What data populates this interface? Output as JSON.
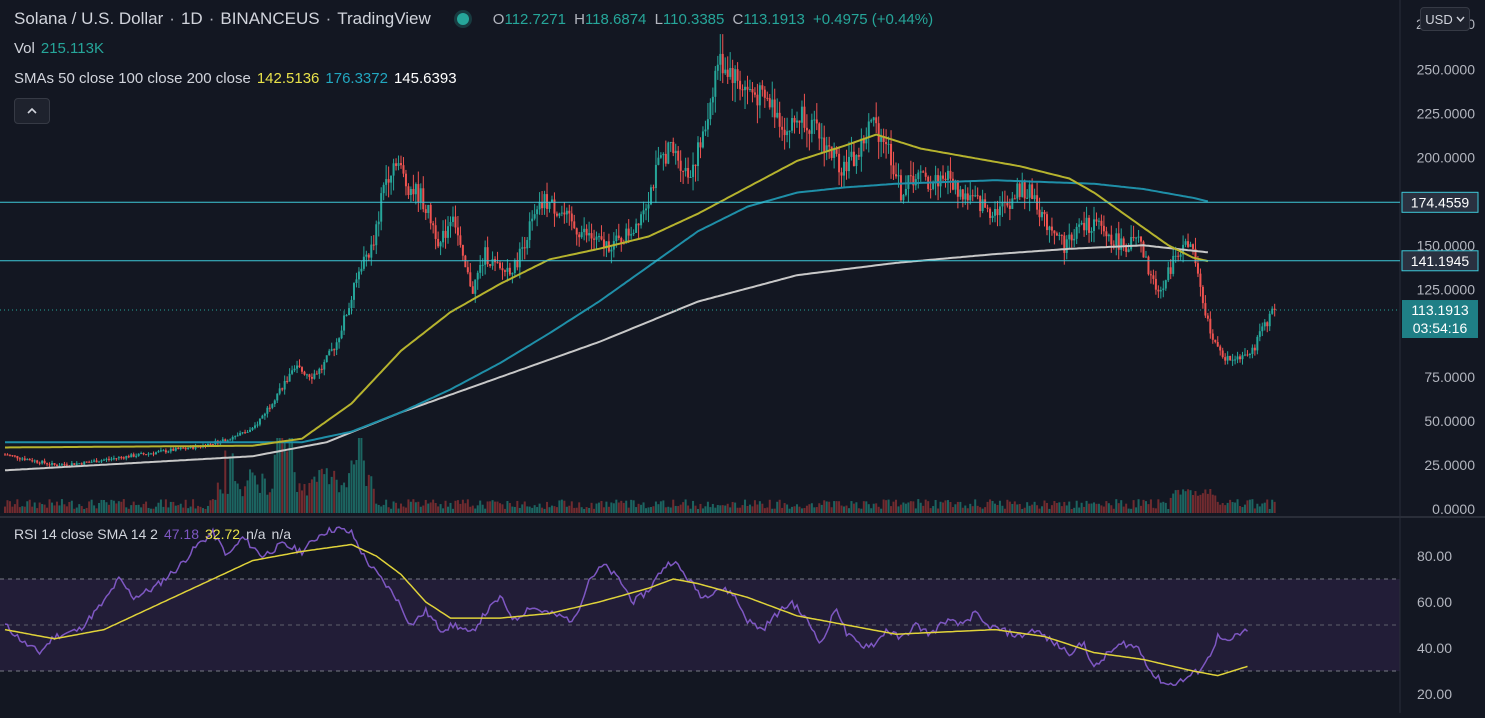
{
  "header": {
    "symbol": "Solana / U.S. Dollar",
    "interval": "1D",
    "exchange": "BINANCEUS",
    "brand": "TradingView",
    "sep": "·",
    "ohlc": {
      "o_label": "O",
      "o": "112.7271",
      "h_label": "H",
      "h": "118.6874",
      "l_label": "L",
      "l": "110.3385",
      "c_label": "C",
      "c": "113.1913",
      "change": "+0.4975 (+0.44%)"
    },
    "vol_label": "Vol",
    "vol_value": "215.113K",
    "smas_label": "SMAs 50 close 100 close 200 close",
    "sma50": "142.5136",
    "sma100": "176.3372",
    "sma200": "145.6393",
    "currency": "USD"
  },
  "rsi_legend": {
    "label": "RSI 14 close SMA 14 2",
    "rsi": "47.18",
    "sma": "32.72",
    "na1": "n/a",
    "na2": "n/a"
  },
  "price_axis": {
    "ticks": [
      "250.0000",
      "225.0000",
      "200.0000",
      "150.0000",
      "125.0000",
      "75.0000",
      "50.0000",
      "25.0000",
      "0.0000"
    ],
    "tick_values": [
      250,
      225,
      200,
      150,
      125,
      75,
      50,
      25,
      0
    ],
    "top_partial": "2",
    "top_right": "0"
  },
  "horizontal_lines": [
    {
      "value": 174.4559,
      "label": "174.4559"
    },
    {
      "value": 141.1945,
      "label": "141.1945"
    }
  ],
  "last_price": {
    "value": 113.1913,
    "label": "113.1913",
    "countdown": "03:54:16"
  },
  "rsi_axis": {
    "ticks": [
      "80.00",
      "60.00",
      "40.00",
      "20.00"
    ],
    "tick_values": [
      80,
      60,
      40,
      20
    ],
    "band": [
      30,
      70
    ],
    "mid": 50
  },
  "colors": {
    "background": "#131722",
    "up": "#26a69a",
    "down": "#ef5350",
    "sma50": "#b6b32e",
    "sma100": "#1f8fa8",
    "sma200": "#c8c8c8",
    "hline": "#3ec8d8",
    "rsi": "#7e57c2",
    "rsi_sma": "#e0d33a",
    "label_bg": "#1f7f86"
  },
  "chart_data": {
    "type": "candlestick",
    "series_names": [
      "Price",
      "SMA 50",
      "SMA 100",
      "SMA 200",
      "Vol",
      "RSI 14",
      "RSI SMA 14"
    ],
    "anchors": [
      [
        0,
        31
      ],
      [
        10,
        28
      ],
      [
        20,
        25
      ],
      [
        30,
        26
      ],
      [
        40,
        28
      ],
      [
        50,
        30
      ],
      [
        60,
        32
      ],
      [
        70,
        34
      ],
      [
        80,
        36
      ],
      [
        90,
        40
      ],
      [
        100,
        45
      ],
      [
        105,
        55
      ],
      [
        112,
        70
      ],
      [
        118,
        80
      ],
      [
        124,
        76
      ],
      [
        128,
        80
      ],
      [
        134,
        95
      ],
      [
        140,
        120
      ],
      [
        144,
        140
      ],
      [
        149,
        150
      ],
      [
        153,
        185
      ],
      [
        158,
        200
      ],
      [
        162,
        185
      ],
      [
        168,
        178
      ],
      [
        172,
        165
      ],
      [
        176,
        150
      ],
      [
        181,
        170
      ],
      [
        185,
        140
      ],
      [
        189,
        125
      ],
      [
        194,
        145
      ],
      [
        200,
        135
      ],
      [
        206,
        138
      ],
      [
        212,
        160
      ],
      [
        218,
        175
      ],
      [
        224,
        170
      ],
      [
        230,
        160
      ],
      [
        236,
        155
      ],
      [
        242,
        150
      ],
      [
        248,
        152
      ],
      [
        254,
        160
      ],
      [
        260,
        178
      ],
      [
        264,
        195
      ],
      [
        268,
        205
      ],
      [
        272,
        200
      ],
      [
        276,
        190
      ],
      [
        282,
        210
      ],
      [
        288,
        255
      ],
      [
        293,
        250
      ],
      [
        298,
        240
      ],
      [
        304,
        235
      ],
      [
        310,
        230
      ],
      [
        316,
        215
      ],
      [
        322,
        225
      ],
      [
        330,
        210
      ],
      [
        338,
        195
      ],
      [
        344,
        200
      ],
      [
        350,
        220
      ],
      [
        356,
        210
      ],
      [
        362,
        180
      ],
      [
        368,
        190
      ],
      [
        374,
        185
      ],
      [
        380,
        190
      ],
      [
        386,
        180
      ],
      [
        392,
        175
      ],
      [
        398,
        170
      ],
      [
        404,
        172
      ],
      [
        410,
        182
      ],
      [
        416,
        178
      ],
      [
        420,
        163
      ],
      [
        424,
        160
      ],
      [
        428,
        150
      ],
      [
        434,
        160
      ],
      [
        440,
        162
      ],
      [
        446,
        155
      ],
      [
        452,
        150
      ],
      [
        458,
        152
      ],
      [
        464,
        128
      ],
      [
        468,
        125
      ],
      [
        472,
        142
      ],
      [
        476,
        150
      ],
      [
        480,
        148
      ],
      [
        484,
        115
      ],
      [
        490,
        90
      ],
      [
        494,
        85
      ],
      [
        500,
        88
      ],
      [
        505,
        92
      ],
      [
        509,
        105
      ],
      [
        513,
        113
      ]
    ],
    "sma50_anchors": [
      [
        0,
        35
      ],
      [
        100,
        36
      ],
      [
        120,
        40
      ],
      [
        140,
        60
      ],
      [
        160,
        90
      ],
      [
        180,
        112
      ],
      [
        200,
        128
      ],
      [
        220,
        142
      ],
      [
        240,
        148
      ],
      [
        260,
        155
      ],
      [
        280,
        168
      ],
      [
        300,
        183
      ],
      [
        320,
        198
      ],
      [
        340,
        207
      ],
      [
        352,
        213
      ],
      [
        370,
        205
      ],
      [
        390,
        200
      ],
      [
        410,
        195
      ],
      [
        430,
        188
      ],
      [
        440,
        180
      ],
      [
        455,
        165
      ],
      [
        470,
        150
      ],
      [
        480,
        143
      ],
      [
        486,
        141
      ]
    ],
    "sma100_anchors": [
      [
        0,
        38
      ],
      [
        120,
        38
      ],
      [
        140,
        44
      ],
      [
        160,
        55
      ],
      [
        180,
        68
      ],
      [
        200,
        83
      ],
      [
        220,
        100
      ],
      [
        240,
        118
      ],
      [
        260,
        138
      ],
      [
        280,
        158
      ],
      [
        300,
        172
      ],
      [
        320,
        180
      ],
      [
        340,
        183
      ],
      [
        360,
        185
      ],
      [
        380,
        186
      ],
      [
        400,
        187
      ],
      [
        420,
        186
      ],
      [
        440,
        185
      ],
      [
        460,
        182
      ],
      [
        480,
        177
      ],
      [
        486,
        175
      ]
    ],
    "sma200_anchors": [
      [
        0,
        22
      ],
      [
        100,
        30
      ],
      [
        130,
        38
      ],
      [
        160,
        55
      ],
      [
        200,
        75
      ],
      [
        240,
        95
      ],
      [
        280,
        118
      ],
      [
        320,
        133
      ],
      [
        360,
        140
      ],
      [
        400,
        145
      ],
      [
        430,
        148
      ],
      [
        460,
        150
      ],
      [
        486,
        146
      ]
    ],
    "rsi_anchors": [
      [
        0,
        50
      ],
      [
        8,
        42
      ],
      [
        14,
        38
      ],
      [
        20,
        45
      ],
      [
        30,
        48
      ],
      [
        40,
        60
      ],
      [
        46,
        70
      ],
      [
        52,
        62
      ],
      [
        60,
        66
      ],
      [
        70,
        75
      ],
      [
        78,
        85
      ],
      [
        84,
        90
      ],
      [
        90,
        80
      ],
      [
        96,
        88
      ],
      [
        104,
        80
      ],
      [
        112,
        85
      ],
      [
        120,
        82
      ],
      [
        128,
        90
      ],
      [
        134,
        92
      ],
      [
        140,
        90
      ],
      [
        146,
        78
      ],
      [
        152,
        70
      ],
      [
        158,
        62
      ],
      [
        164,
        50
      ],
      [
        170,
        56
      ],
      [
        176,
        48
      ],
      [
        182,
        50
      ],
      [
        188,
        46
      ],
      [
        194,
        55
      ],
      [
        200,
        62
      ],
      [
        206,
        52
      ],
      [
        212,
        58
      ],
      [
        220,
        55
      ],
      [
        230,
        52
      ],
      [
        236,
        70
      ],
      [
        242,
        76
      ],
      [
        248,
        70
      ],
      [
        254,
        60
      ],
      [
        260,
        65
      ],
      [
        266,
        75
      ],
      [
        270,
        78
      ],
      [
        276,
        70
      ],
      [
        282,
        62
      ],
      [
        288,
        66
      ],
      [
        294,
        64
      ],
      [
        300,
        52
      ],
      [
        306,
        48
      ],
      [
        312,
        55
      ],
      [
        318,
        60
      ],
      [
        324,
        52
      ],
      [
        330,
        42
      ],
      [
        336,
        58
      ],
      [
        340,
        46
      ],
      [
        346,
        41
      ],
      [
        352,
        42
      ],
      [
        356,
        48
      ],
      [
        362,
        44
      ],
      [
        368,
        50
      ],
      [
        374,
        46
      ],
      [
        380,
        52
      ],
      [
        386,
        50
      ],
      [
        392,
        55
      ],
      [
        396,
        50
      ],
      [
        402,
        48
      ],
      [
        410,
        45
      ],
      [
        416,
        48
      ],
      [
        424,
        42
      ],
      [
        430,
        38
      ],
      [
        436,
        42
      ],
      [
        440,
        31
      ],
      [
        446,
        38
      ],
      [
        452,
        42
      ],
      [
        458,
        40
      ],
      [
        464,
        28
      ],
      [
        470,
        24
      ],
      [
        476,
        26
      ],
      [
        482,
        30
      ],
      [
        486,
        35
      ],
      [
        490,
        45
      ],
      [
        494,
        42
      ],
      [
        498,
        46
      ],
      [
        502,
        47
      ]
    ],
    "rsi_sma_anchors": [
      [
        0,
        48
      ],
      [
        20,
        44
      ],
      [
        40,
        48
      ],
      [
        60,
        58
      ],
      [
        80,
        68
      ],
      [
        100,
        78
      ],
      [
        120,
        82
      ],
      [
        140,
        85
      ],
      [
        150,
        80
      ],
      [
        160,
        72
      ],
      [
        170,
        60
      ],
      [
        180,
        53
      ],
      [
        200,
        53
      ],
      [
        220,
        55
      ],
      [
        240,
        60
      ],
      [
        260,
        66
      ],
      [
        270,
        70
      ],
      [
        280,
        68
      ],
      [
        300,
        62
      ],
      [
        320,
        54
      ],
      [
        340,
        50
      ],
      [
        360,
        46
      ],
      [
        380,
        47
      ],
      [
        400,
        48
      ],
      [
        420,
        45
      ],
      [
        440,
        38
      ],
      [
        460,
        35
      ],
      [
        480,
        30
      ],
      [
        490,
        28
      ],
      [
        502,
        32
      ]
    ]
  }
}
